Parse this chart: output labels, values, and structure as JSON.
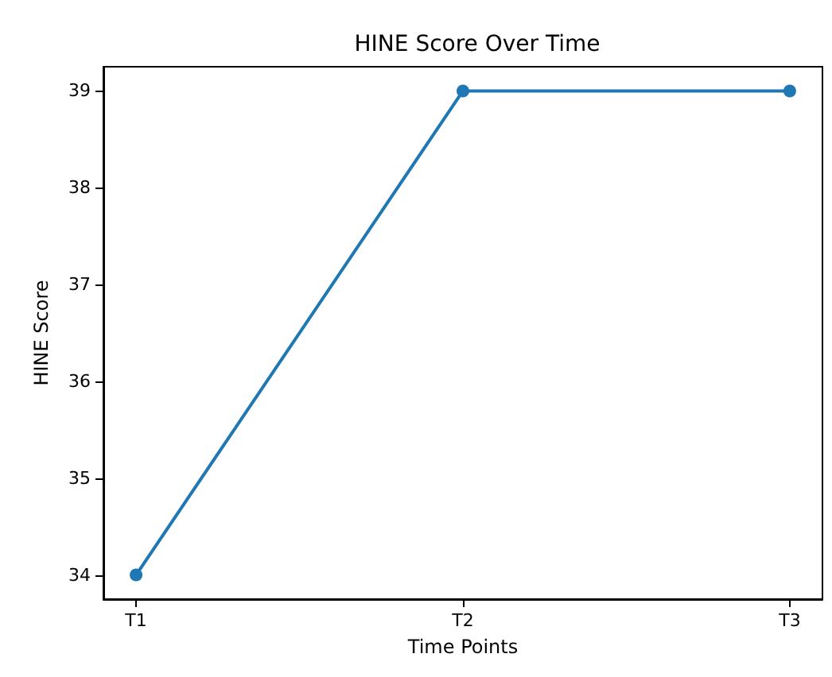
{
  "chart_data": {
    "type": "line",
    "title": "HINE Score Over Time",
    "xlabel": "Time Points",
    "ylabel": "HINE Score",
    "categories": [
      "T1",
      "T2",
      "T3"
    ],
    "series": [
      {
        "color": "#1f77b4",
        "values": [
          34,
          39,
          39
        ]
      }
    ],
    "ylim": [
      33.75,
      39.25
    ],
    "yticks": [
      34,
      35,
      36,
      37,
      38,
      39
    ],
    "grid": false,
    "marker": "circle",
    "line_style": "solid"
  }
}
